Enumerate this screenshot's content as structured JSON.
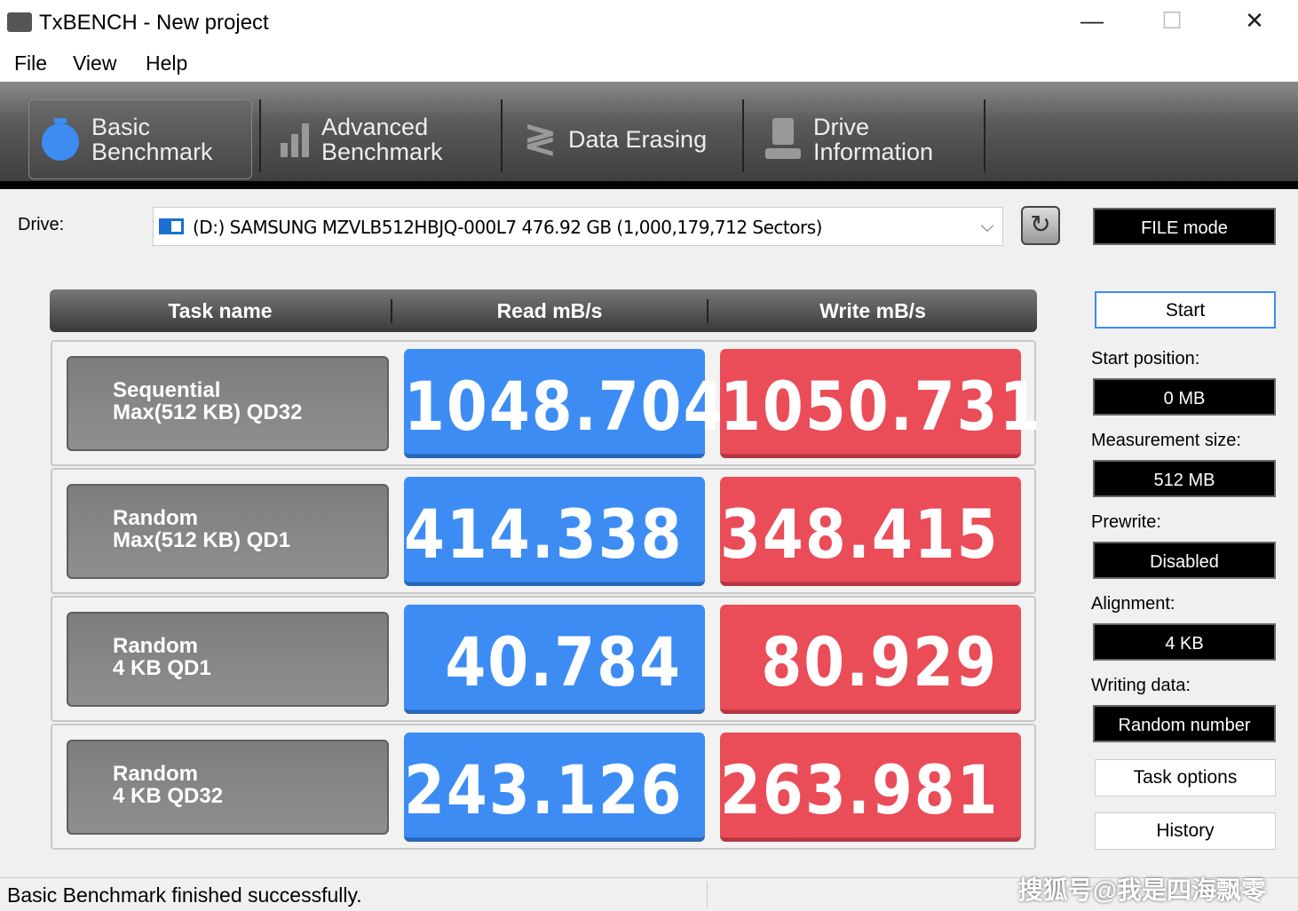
{
  "window": {
    "title": "TxBENCH - New project",
    "minimize": "—",
    "maximize": "☐",
    "close": "✕"
  },
  "menu": [
    "File",
    "View",
    "Help"
  ],
  "tabs": [
    {
      "label1": "Basic",
      "label2": "Benchmark",
      "icon": "stopwatch-icon"
    },
    {
      "label1": "Advanced",
      "label2": "Benchmark",
      "icon": "bar-chart-icon"
    },
    {
      "label1": "Data Erasing",
      "label2": "",
      "icon": "eraser-icon"
    },
    {
      "label1": "Drive",
      "label2": "Information",
      "icon": "drive-info-icon"
    }
  ],
  "drive": {
    "label": "Drive:",
    "value": "(D:) SAMSUNG MZVLB512HBJQ-000L7  476.92 GB (1,000,179,712 Sectors)",
    "mode": "FILE mode"
  },
  "table": {
    "headers": [
      "Task name",
      "Read mB/s",
      "Write mB/s"
    ],
    "rows": [
      {
        "t1": "Sequential",
        "t2": "Max(512 KB) QD32",
        "read": "1048.704",
        "write": "1050.731"
      },
      {
        "t1": "Random",
        "t2": "Max(512 KB) QD1",
        "read": "414.338",
        "write": "348.415"
      },
      {
        "t1": "Random",
        "t2": "4 KB QD1",
        "read": "40.784",
        "write": "80.929"
      },
      {
        "t1": "Random",
        "t2": "4 KB QD32",
        "read": "243.126",
        "write": "263.981"
      }
    ]
  },
  "side": {
    "start": "Start",
    "start_pos_label": "Start position:",
    "start_pos": "0 MB",
    "size_label": "Measurement size:",
    "size": "512 MB",
    "prewrite_label": "Prewrite:",
    "prewrite": "Disabled",
    "align_label": "Alignment:",
    "align": "4 KB",
    "writing_label": "Writing data:",
    "writing": "Random number",
    "task_options": "Task options",
    "history": "History"
  },
  "status": "Basic Benchmark finished successfully.",
  "watermark": "搜狐号@我是四海飘零",
  "colors": {
    "read": "#3c8cf4",
    "write": "#ea4c58"
  }
}
